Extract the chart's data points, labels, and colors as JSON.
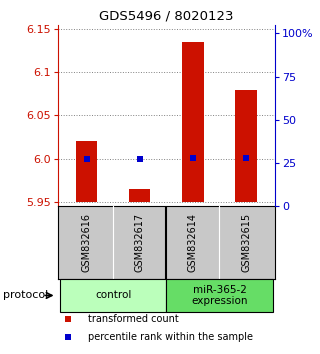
{
  "title": "GDS5496 / 8020123",
  "samples": [
    "GSM832616",
    "GSM832617",
    "GSM832614",
    "GSM832615"
  ],
  "transformed_count": [
    6.02,
    5.965,
    6.135,
    6.08
  ],
  "percentile_rank": [
    27,
    27,
    28,
    28
  ],
  "baseline": 5.95,
  "ylim_left": [
    5.945,
    6.155
  ],
  "yticks_left": [
    5.95,
    6.0,
    6.05,
    6.1,
    6.15
  ],
  "ylim_right": [
    0,
    105
  ],
  "yticks_right": [
    0,
    25,
    50,
    75,
    100
  ],
  "yticklabels_right": [
    "0",
    "25",
    "50",
    "75",
    "100%"
  ],
  "bar_color": "#cc1100",
  "marker_color": "#0000cc",
  "groups": [
    {
      "label": "control",
      "indices": [
        0,
        1
      ],
      "color": "#bbffbb"
    },
    {
      "label": "miR-365-2\nexpression",
      "indices": [
        2,
        3
      ],
      "color": "#66dd66"
    }
  ],
  "legend_items": [
    {
      "color": "#cc1100",
      "label": "transformed count"
    },
    {
      "color": "#0000cc",
      "label": "percentile rank within the sample"
    }
  ],
  "protocol_label": "protocol",
  "background_color": "#ffffff",
  "left_axis_color": "#cc1100",
  "right_axis_color": "#0000cc",
  "sample_box_color": "#c8c8c8"
}
